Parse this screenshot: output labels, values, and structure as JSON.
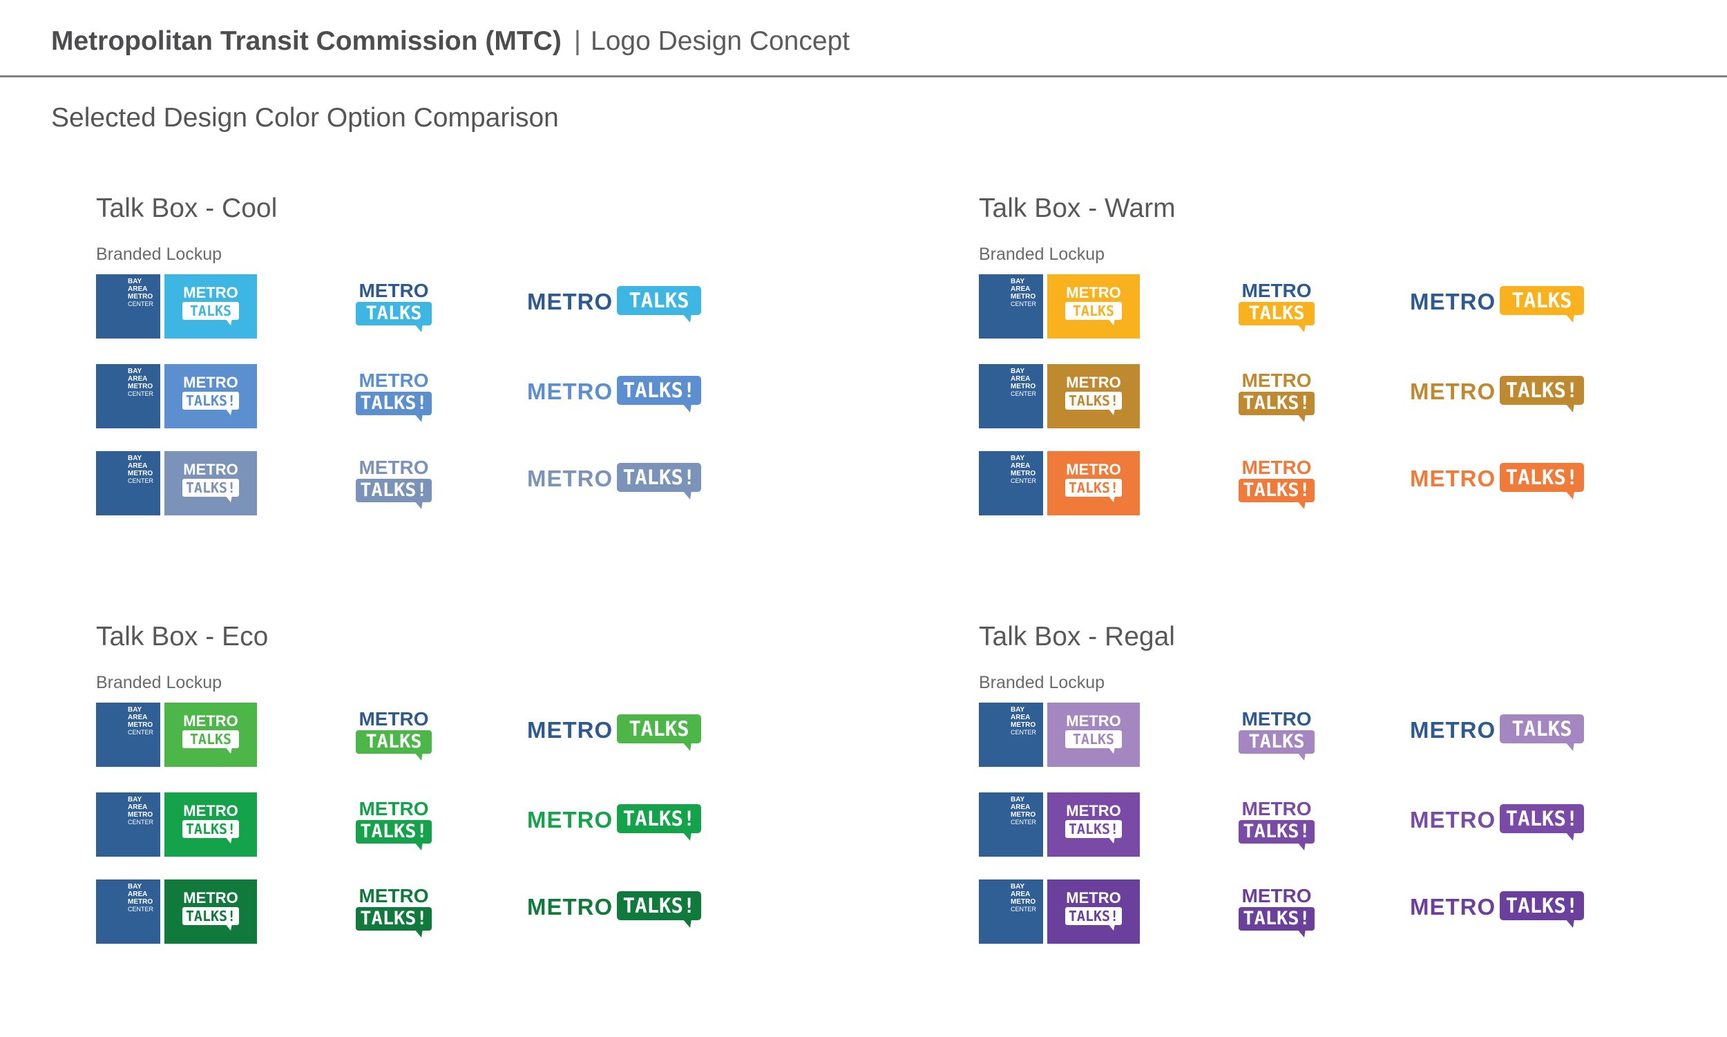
{
  "header": {
    "organization": "Metropolitan Transit Commission (MTC)",
    "separator": "|",
    "subtitle": "Logo Design Concept"
  },
  "section_title": "Selected Design Color Option Comparison",
  "brand": {
    "lockup_left_lines": [
      "BAY",
      "AREA",
      "METRO",
      "CENTER"
    ],
    "lockup_left_color": "#2f5f95",
    "metro_text": "METRO",
    "metro_navy": "#2e5a8f"
  },
  "quadrants": [
    {
      "title": "Talk Box - Cool",
      "subtitle": "Branded Lockup",
      "rows": [
        {
          "color": "#3db6e3",
          "talks": "TALKS",
          "metro_same_color": false
        },
        {
          "color": "#5b8fd0",
          "talks": "TALKS!",
          "metro_same_color": true
        },
        {
          "color": "#7b93b8",
          "talks": "TALKS!",
          "metro_same_color": true
        }
      ]
    },
    {
      "title": "Talk Box - Warm",
      "subtitle": "Branded Lockup",
      "rows": [
        {
          "color": "#f9b21d",
          "talks": "TALKS",
          "metro_same_color": false
        },
        {
          "color": "#bf8930",
          "talks": "TALKS!",
          "metro_same_color": true
        },
        {
          "color": "#f07a39",
          "talks": "TALKS!",
          "metro_same_color": true
        }
      ]
    },
    {
      "title": "Talk Box - Eco",
      "subtitle": "Branded Lockup",
      "rows": [
        {
          "color": "#4cb748",
          "talks": "TALKS",
          "metro_same_color": false
        },
        {
          "color": "#14a24a",
          "talks": "TALKS!",
          "metro_same_color": true
        },
        {
          "color": "#0f7a3b",
          "talks": "TALKS!",
          "metro_same_color": true
        }
      ]
    },
    {
      "title": "Talk Box - Regal",
      "subtitle": "Branded Lockup",
      "rows": [
        {
          "color": "#a486c0",
          "talks": "TALKS",
          "metro_same_color": false
        },
        {
          "color": "#7a4aa7",
          "talks": "TALKS!",
          "metro_same_color": true
        },
        {
          "color": "#6b3f9c",
          "talks": "TALKS!",
          "metro_same_color": true
        }
      ]
    }
  ]
}
